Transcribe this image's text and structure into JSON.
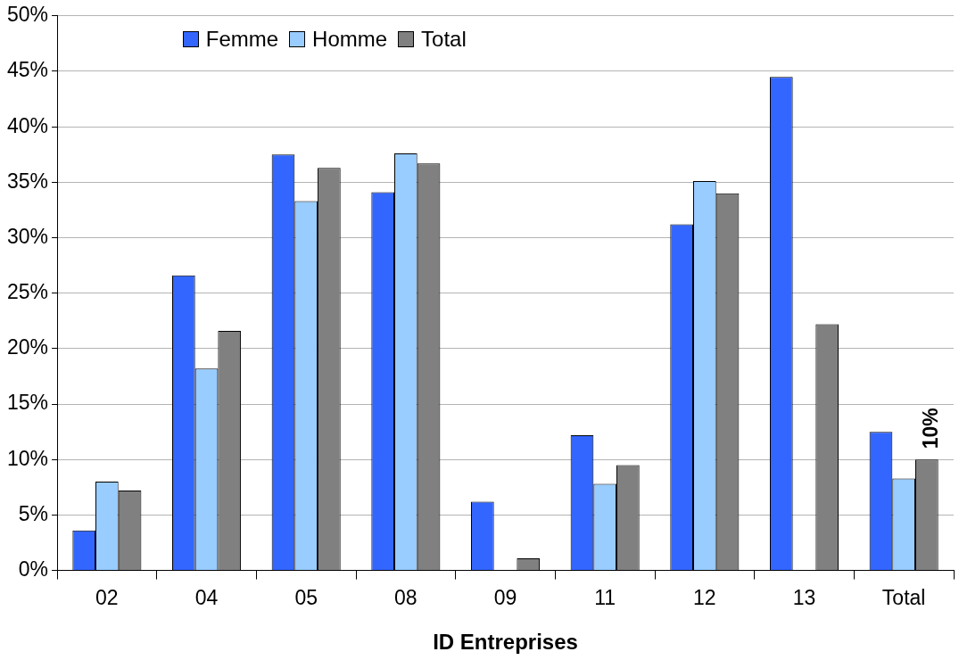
{
  "chart_data": {
    "type": "bar",
    "xlabel": "ID Entreprises",
    "categories": [
      "02",
      "04",
      "05",
      "08",
      "09",
      "11",
      "12",
      "13",
      "Total"
    ],
    "series": [
      {
        "name": "Femme",
        "color": "#3366ff",
        "values": [
          3.6,
          26.6,
          37.5,
          34.1,
          6.2,
          12.2,
          31.2,
          44.5,
          12.5
        ]
      },
      {
        "name": "Homme",
        "color": "#99ccff",
        "values": [
          8.0,
          18.2,
          33.3,
          37.6,
          null,
          7.8,
          35.1,
          null,
          8.3
        ]
      },
      {
        "name": "Total",
        "color": "#808080",
        "values": [
          7.2,
          21.6,
          36.3,
          36.7,
          1.1,
          9.5,
          34.0,
          22.2,
          10.0
        ],
        "value_labels": [
          null,
          null,
          null,
          null,
          null,
          null,
          null,
          null,
          "10%"
        ]
      }
    ],
    "ylim": [
      0,
      50
    ],
    "yticks": [
      {
        "value": 0,
        "label": "0%"
      },
      {
        "value": 5,
        "label": "5%"
      },
      {
        "value": 10,
        "label": "10%"
      },
      {
        "value": 15,
        "label": "15%"
      },
      {
        "value": 20,
        "label": "20%"
      },
      {
        "value": 25,
        "label": "25%"
      },
      {
        "value": 30,
        "label": "30%"
      },
      {
        "value": 35,
        "label": "35%"
      },
      {
        "value": 40,
        "label": "40%"
      },
      {
        "value": 45,
        "label": "45%"
      },
      {
        "value": 50,
        "label": "50%"
      }
    ],
    "grid": "y",
    "legend": "top left"
  }
}
